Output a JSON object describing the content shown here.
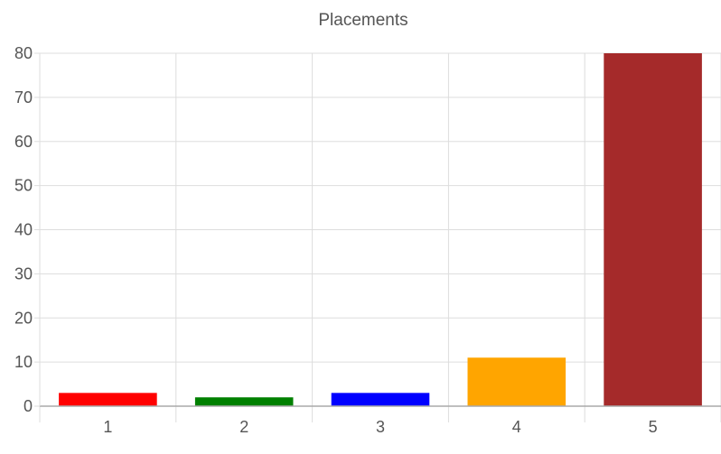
{
  "chart_data": {
    "type": "bar",
    "title": "Placements",
    "xlabel": "",
    "ylabel": "",
    "categories": [
      "1",
      "2",
      "3",
      "4",
      "5"
    ],
    "values": [
      3,
      2,
      3,
      11,
      80
    ],
    "colors": [
      "#ff0000",
      "#008000",
      "#0000ff",
      "#ffa500",
      "#a52a2a"
    ],
    "ylim": [
      0,
      80
    ],
    "yticks": [
      0,
      10,
      20,
      30,
      40,
      50,
      60,
      70,
      80
    ],
    "grid": true,
    "legend": "none"
  }
}
